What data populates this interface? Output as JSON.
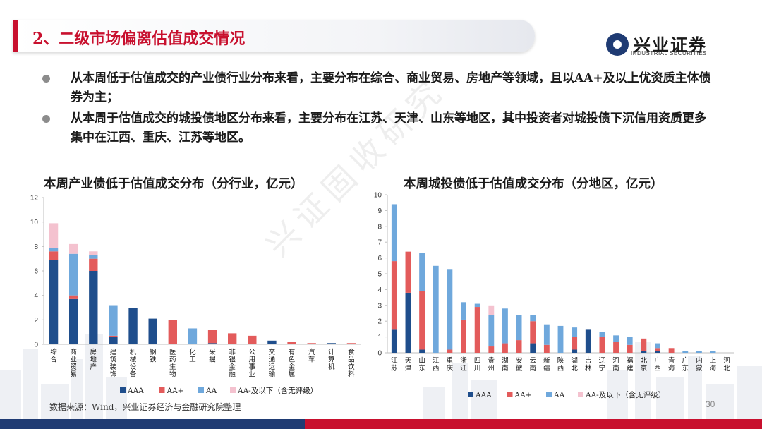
{
  "header": {
    "title": "2、二级市场偏离估值成交情况"
  },
  "logo": {
    "name_cn": "兴业证券",
    "name_en": "INDUSTRIAL SECURITIES"
  },
  "bullets": [
    "从本周低于估值成交的产业债行业分布来看，主要分布在综合、商业贸易、房地产等领域，且以AA+及以上优资质主体债券为主；",
    "从本周于估值成交的城投债地区分布来看，主要分布在江苏、天津、山东等地区，其中投资者对城投债下沉信用资质更多集中在江西、重庆、江苏等地区。"
  ],
  "watermark": "兴证固收研究",
  "colors": {
    "AAA": "#1f4e8c",
    "AA+": "#e35b5b",
    "AA": "#6fa8dc",
    "AA-": "#f4c2cf",
    "brand_red": "#c8102e",
    "brand_blue": "#1f3b73"
  },
  "chart_data": [
    {
      "type": "bar",
      "stacked": true,
      "title": "本周产业债低于估值成交分布（分行业，亿元）",
      "categories": [
        "综合",
        "商业贸易",
        "房地产",
        "建筑装饰",
        "机械设备",
        "钢铁",
        "医药生物",
        "化工",
        "采掘",
        "非银金融",
        "公用事业",
        "交通运输",
        "有色金属",
        "汽车",
        "计算机",
        "食品饮料"
      ],
      "ylim": [
        0,
        12
      ],
      "yticks": [
        0,
        2,
        4,
        6,
        8,
        10,
        12
      ],
      "series": [
        {
          "name": "AAA",
          "values": [
            6.9,
            3.7,
            6.0,
            0.6,
            3.0,
            2.1,
            0,
            0,
            0.1,
            0,
            0,
            0.3,
            0,
            0,
            0.1,
            0
          ]
        },
        {
          "name": "AA+",
          "values": [
            0.7,
            0.3,
            1.0,
            0.1,
            0,
            0,
            2.0,
            0,
            1.1,
            0.9,
            0.7,
            0,
            0.2,
            0.1,
            0,
            0.1
          ]
        },
        {
          "name": "AA",
          "values": [
            0.3,
            3.4,
            0.3,
            2.5,
            0,
            0,
            0,
            1.3,
            0,
            0,
            0,
            0,
            0,
            0,
            0,
            0
          ]
        },
        {
          "name": "AA-及以下（含无评级）",
          "values": [
            2.0,
            0.8,
            0.3,
            0,
            0,
            0,
            0,
            0,
            0,
            0,
            0,
            0,
            0,
            0,
            0,
            0
          ]
        }
      ],
      "legend": "bottom"
    },
    {
      "type": "bar",
      "stacked": true,
      "title": "本周城投债低于估值成交分布（分地区，亿元）",
      "categories": [
        "江苏",
        "天津",
        "山东",
        "江西",
        "重庆",
        "浙江",
        "四川",
        "贵州",
        "湖南",
        "安徽",
        "云南",
        "新疆",
        "陕西",
        "湖北",
        "吉林",
        "辽宁",
        "河南",
        "福建",
        "北京",
        "广西",
        "青海",
        "广东",
        "内蒙",
        "上海",
        "河北"
      ],
      "ylim": [
        0,
        10
      ],
      "yticks": [
        0,
        1,
        2,
        3,
        4,
        5,
        6,
        7,
        8,
        9,
        10
      ],
      "series": [
        {
          "name": "AAA",
          "values": [
            1.5,
            3.8,
            0.2,
            0,
            0,
            0,
            0,
            0,
            0,
            0,
            0.6,
            0,
            0,
            0.2,
            1.5,
            0,
            0,
            0,
            0.1,
            0.1,
            0,
            0,
            0,
            0,
            0
          ]
        },
        {
          "name": "AA+",
          "values": [
            4.3,
            2.6,
            3.7,
            0,
            0.2,
            2.1,
            2.9,
            0.4,
            0.6,
            0.8,
            1.4,
            0.5,
            0,
            0.8,
            0,
            1.0,
            0.7,
            0.5,
            0.8,
            0.2,
            0.3,
            0,
            0,
            0,
            0
          ]
        },
        {
          "name": "AA",
          "values": [
            3.6,
            0,
            2.4,
            5.5,
            5.1,
            1.1,
            0.2,
            2.0,
            2.2,
            1.6,
            0.4,
            1.3,
            1.7,
            0.6,
            0,
            0.3,
            0.4,
            0.5,
            0,
            0.3,
            0,
            0.1,
            0.1,
            0.1,
            0
          ]
        },
        {
          "name": "AA-及以下（含无评级）",
          "values": [
            0,
            0,
            0,
            0,
            0,
            0,
            0,
            0.6,
            0,
            0,
            0,
            0,
            0,
            0,
            0,
            0,
            0,
            0,
            0,
            0,
            0,
            0,
            0,
            0,
            0
          ]
        }
      ],
      "legend": "bottom"
    }
  ],
  "source": "数据来源：Wind，兴业证券经济与金融研究院整理",
  "page_number": "30"
}
